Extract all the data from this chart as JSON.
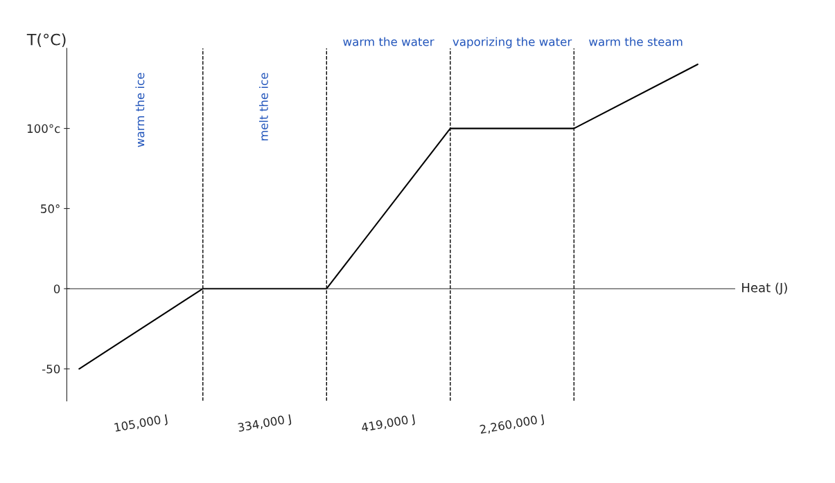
{
  "chart_data": {
    "type": "line",
    "ylabel": "T(°C)",
    "xlabel": "Heat (J)",
    "categories": [
      null,
      null,
      null,
      null,
      null,
      null
    ],
    "values": [
      -50,
      0,
      0,
      100,
      100,
      140
    ],
    "color": "#000000",
    "marker": "none",
    "line_style": "solid",
    "grid": "x",
    "legend": false,
    "ylim": [
      -70,
      150
    ],
    "yticks": [
      {
        "value": -50,
        "label": "-50"
      },
      0,
      {
        "value": 50,
        "label": "50°"
      },
      {
        "value": 100,
        "label": "100°c"
      }
    ],
    "annotations": [
      "warm the ice",
      "melt the ice",
      "warm the water",
      "vaporizing the water",
      "warm the steam",
      "105,000 J",
      "334,000 J",
      "419,000 J",
      "2,260,000 J"
    ]
  }
}
